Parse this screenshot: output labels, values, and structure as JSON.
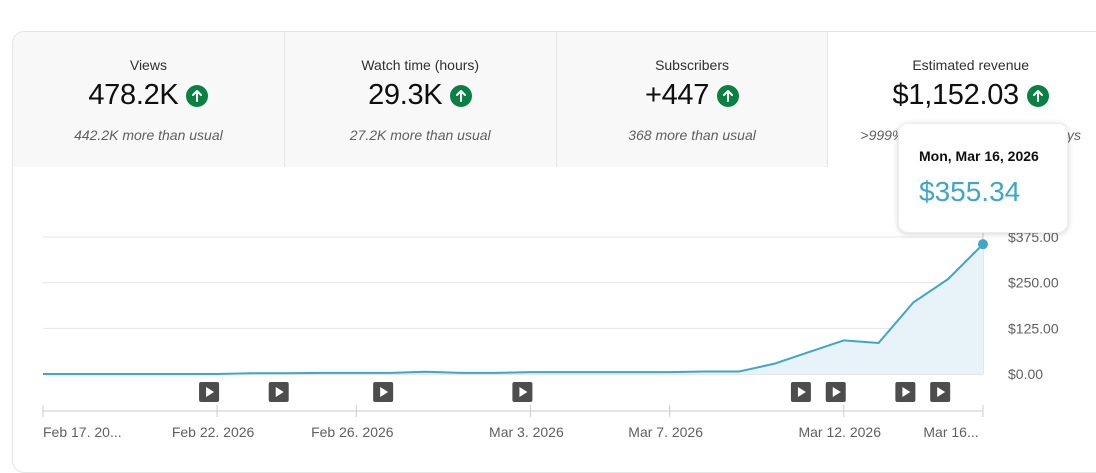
{
  "metrics": [
    {
      "label": "Views",
      "value": "478.2K",
      "sub": "442.2K more than usual"
    },
    {
      "label": "Watch time (hours)",
      "value": "29.3K",
      "sub": "27.2K more than usual"
    },
    {
      "label": "Subscribers",
      "value": "+447",
      "sub": "368 more than usual"
    },
    {
      "label": "Estimated revenue",
      "value": "$1,152.03",
      "sub": ">999% more than previous 28 days"
    }
  ],
  "tooltip": {
    "date": "Mon, Mar 16, 2026",
    "value": "$355.34"
  },
  "colors": {
    "line": "#3ea6c6",
    "area": "#e8f3f9",
    "up_badge": "#0b8043"
  },
  "icons": {
    "trend": "arrow-up-icon",
    "video_marker": "play-icon"
  },
  "chart_data": {
    "type": "area",
    "x_tick_labels": [
      "Feb 17, 20...",
      "Feb 22, 2026",
      "Feb 26, 2026",
      "Mar 3, 2026",
      "Mar 7, 2026",
      "Mar 12, 2026",
      "Mar 16..."
    ],
    "y_tick_labels": [
      "$0.00",
      "$125.00",
      "$250.00",
      "$375.00"
    ],
    "ylim": [
      0,
      375
    ],
    "x": [
      "Feb 17, 2026",
      "Feb 18, 2026",
      "Feb 19, 2026",
      "Feb 20, 2026",
      "Feb 21, 2026",
      "Feb 22, 2026",
      "Feb 23, 2026",
      "Feb 24, 2026",
      "Feb 25, 2026",
      "Feb 26, 2026",
      "Feb 27, 2026",
      "Feb 28, 2026",
      "Mar 1, 2026",
      "Mar 2, 2026",
      "Mar 3, 2026",
      "Mar 4, 2026",
      "Mar 5, 2026",
      "Mar 6, 2026",
      "Mar 7, 2026",
      "Mar 8, 2026",
      "Mar 9, 2026",
      "Mar 10, 2026",
      "Mar 11, 2026",
      "Mar 12, 2026",
      "Mar 13, 2026",
      "Mar 14, 2026",
      "Mar 15, 2026",
      "Mar 16, 2026"
    ],
    "values": [
      0,
      0,
      0,
      0,
      0,
      0,
      2,
      2,
      3,
      3,
      3,
      6,
      3,
      3,
      5,
      5,
      5,
      5,
      5,
      7,
      7,
      28,
      60,
      92,
      85,
      196,
      260,
      355.34
    ],
    "video_markers": [
      "Feb 22, 2026",
      "Feb 24, 2026",
      "Feb 27, 2026",
      "Mar 3, 2026",
      "Mar 11, 2026",
      "Mar 12, 2026",
      "Mar 14, 2026",
      "Mar 15, 2026"
    ],
    "grid": true,
    "highlighted_point": "Mar 16, 2026"
  }
}
